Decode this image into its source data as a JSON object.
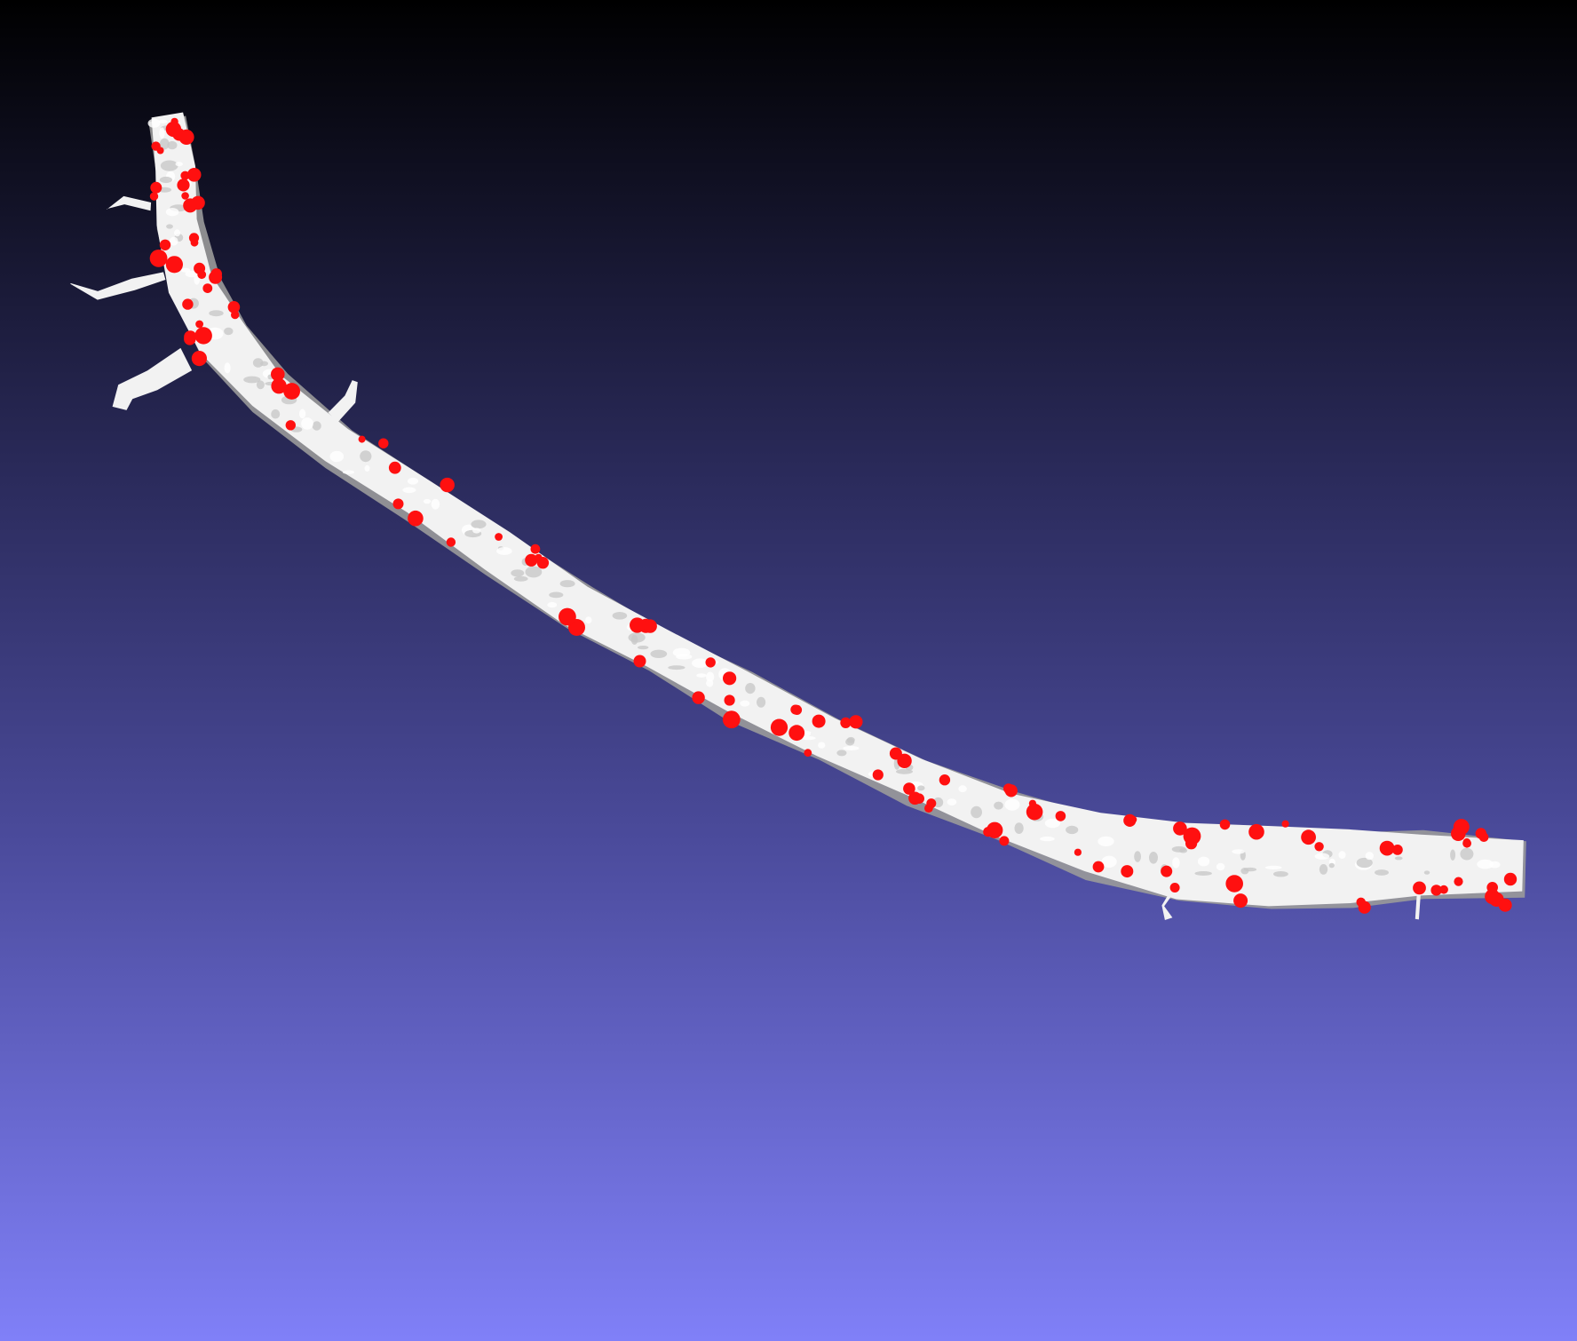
{
  "viewer": {
    "background_top_color": "#000000",
    "background_bottom_color": "#8080f8"
  },
  "mesh": {
    "subject": "dendrite-surface-mesh",
    "surface_color": "#f2f2f2",
    "shade_color": "#9a9a9a",
    "marker_color": "#ff1010",
    "marker_count_visible": 120
  }
}
